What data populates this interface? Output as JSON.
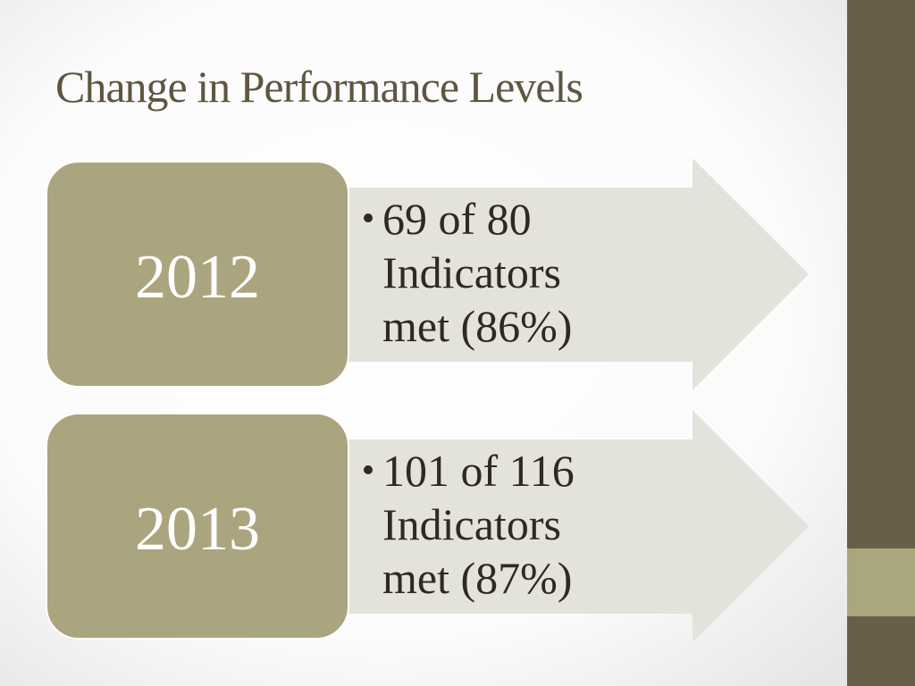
{
  "title": "Change in Performance Levels",
  "items": [
    {
      "year": "2012",
      "lines": [
        "69 of 80",
        "Indicators",
        "met (86%)"
      ]
    },
    {
      "year": "2013",
      "lines": [
        "101 of 116",
        "Indicators",
        "met (87%)"
      ]
    }
  ]
}
